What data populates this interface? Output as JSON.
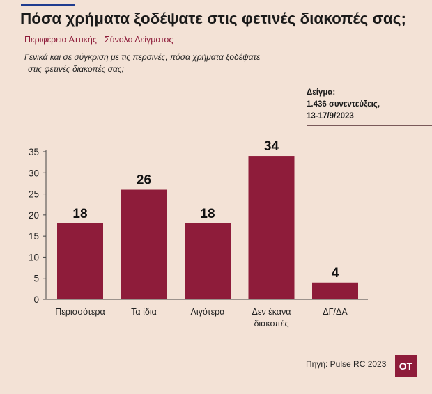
{
  "header": {
    "title": "Πόσα χρήματα ξοδέψατε στις φετινές διακοπές σας;",
    "subtitle": "Περιφέρεια Αττικής - Σύνολο Δείγματος",
    "question_line1": "Γενικά και σε σύγκριση με τις περσινές, πόσα χρήματα ξοδέψατε",
    "question_line2": "στις φετινές διακοπές σας;"
  },
  "sample": {
    "line1": "Δείγμα:",
    "line2": "1.436 συνεντεύξεις,",
    "line3": "13-17/9/2023"
  },
  "footer": {
    "source": "Πηγή: Pulse RC 2023",
    "logo": "ΟΤ"
  },
  "colors": {
    "bar": "#8e1c3a",
    "background": "#f3e2d6"
  },
  "chart_data": {
    "type": "bar",
    "categories": [
      [
        "Περισσότερα"
      ],
      [
        "Τα ίδια"
      ],
      [
        "Λιγότερα"
      ],
      [
        "Δεν έκανα",
        "διακοπές"
      ],
      [
        "ΔΓ/ΔΑ"
      ]
    ],
    "values": [
      18,
      26,
      18,
      34,
      4
    ],
    "data_labels": [
      "18",
      "26",
      "18",
      "34",
      "4"
    ],
    "yticks": [
      0,
      5,
      10,
      15,
      20,
      25,
      30,
      35
    ],
    "ylim": [
      0,
      35
    ],
    "grid": false,
    "legend": "none"
  }
}
